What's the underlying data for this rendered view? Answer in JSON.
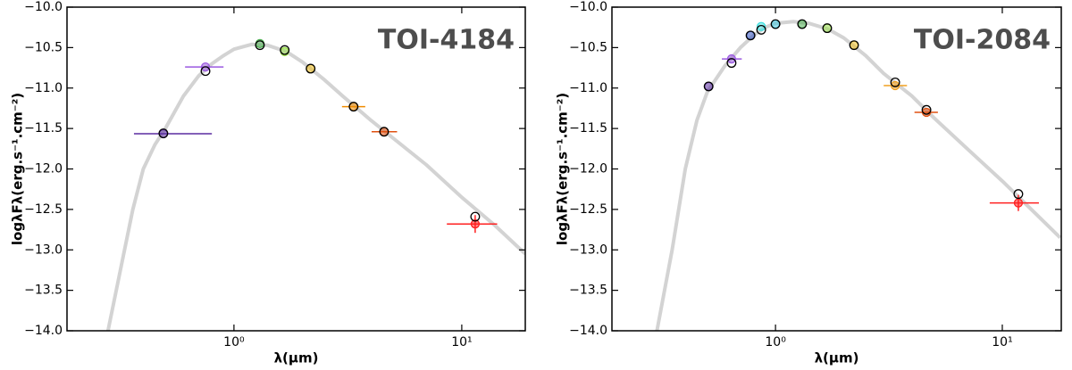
{
  "chart_data": [
    {
      "type": "scatter",
      "annotation": "TOI-4184",
      "xlabel": "λ(μm)",
      "ylabel": "logλFλ(erg.s⁻¹.cm⁻²)",
      "xscale": "log",
      "xlim": [
        0.185,
        19
      ],
      "ylim": [
        -14,
        -10
      ],
      "xticks": [
        {
          "value": 1,
          "label": "10⁰"
        },
        {
          "value": 10,
          "label": "10¹"
        }
      ],
      "yticks": [
        {
          "value": -14,
          "label": "−14.0"
        },
        {
          "value": -13.5,
          "label": "−13.5"
        },
        {
          "value": -13,
          "label": "−13.0"
        },
        {
          "value": -12.5,
          "label": "−12.5"
        },
        {
          "value": -12,
          "label": "−12.0"
        },
        {
          "value": -11.5,
          "label": "−11.5"
        },
        {
          "value": -11,
          "label": "−11.0"
        },
        {
          "value": -10.5,
          "label": "−10.5"
        },
        {
          "value": -10,
          "label": "−10.0"
        }
      ],
      "model_spectrum": {
        "color": "#d3d3d3",
        "x": [
          0.28,
          0.32,
          0.36,
          0.4,
          0.45,
          0.5,
          0.6,
          0.7,
          0.8,
          0.9,
          1.0,
          1.2,
          1.4,
          1.7,
          2.0,
          2.5,
          3,
          4,
          5,
          7,
          10,
          14,
          19
        ],
        "values": [
          -14,
          -13.2,
          -12.5,
          -12.0,
          -11.7,
          -11.5,
          -11.1,
          -10.85,
          -10.7,
          -10.6,
          -10.52,
          -10.46,
          -10.47,
          -10.55,
          -10.68,
          -10.9,
          -11.1,
          -11.4,
          -11.62,
          -11.95,
          -12.35,
          -12.7,
          -13.05
        ]
      },
      "series": [
        {
          "marker": "filled",
          "colors": [
            "#5a2ca0",
            "#9b59e0",
            "#4caf50",
            "#99e04a",
            "#f0c020",
            "#f08c00",
            "#e05010",
            "#ff2020"
          ],
          "x": [
            0.49,
            0.75,
            1.3,
            1.67,
            2.17,
            3.35,
            4.56,
            11.45
          ],
          "values": [
            -11.565,
            -10.74,
            -10.45,
            -10.55,
            -10.76,
            -11.23,
            -11.54,
            -12.68
          ],
          "x_lo": [
            0.364,
            0.61,
            null,
            null,
            null,
            2.98,
            4.02,
            8.6
          ],
          "x_hi": [
            0.8,
            0.9,
            null,
            null,
            null,
            3.77,
            5.2,
            14.3
          ],
          "yerr": [
            null,
            null,
            null,
            null,
            null,
            null,
            null,
            0.11
          ]
        },
        {
          "marker": "open",
          "color": "#000000",
          "x": [
            0.49,
            0.75,
            1.3,
            1.67,
            2.17,
            3.35,
            4.56,
            11.45
          ],
          "values": [
            -11.56,
            -10.79,
            -10.47,
            -10.53,
            -10.76,
            -11.23,
            -11.54,
            -12.59
          ]
        }
      ]
    },
    {
      "type": "scatter",
      "annotation": "TOI-2084",
      "xlabel": "λ(μm)",
      "ylabel": "logλFλ(erg.s⁻¹.cm⁻²)",
      "xscale": "log",
      "xlim": [
        0.19,
        18.2
      ],
      "ylim": [
        -14,
        -10
      ],
      "xticks": [
        {
          "value": 1,
          "label": "10⁰"
        },
        {
          "value": 10,
          "label": "10¹"
        }
      ],
      "yticks": [
        {
          "value": -14,
          "label": "−14.0"
        },
        {
          "value": -13.5,
          "label": "−13.5"
        },
        {
          "value": -13,
          "label": "−13.0"
        },
        {
          "value": -12.5,
          "label": "−12.5"
        },
        {
          "value": -12,
          "label": "−12.0"
        },
        {
          "value": -11.5,
          "label": "−11.5"
        },
        {
          "value": -11,
          "label": "−11.0"
        },
        {
          "value": -10.5,
          "label": "−10.5"
        },
        {
          "value": -10,
          "label": "−10.0"
        }
      ],
      "model_spectrum": {
        "color": "#d3d3d3",
        "x": [
          0.3,
          0.35,
          0.4,
          0.45,
          0.5,
          0.6,
          0.7,
          0.8,
          0.9,
          1.0,
          1.2,
          1.4,
          1.7,
          2.0,
          2.5,
          3,
          4,
          5,
          7,
          10,
          14,
          18
        ],
        "values": [
          -14,
          -13.0,
          -12.0,
          -11.4,
          -11.05,
          -10.72,
          -10.5,
          -10.35,
          -10.25,
          -10.2,
          -10.18,
          -10.2,
          -10.27,
          -10.38,
          -10.6,
          -10.82,
          -11.1,
          -11.37,
          -11.75,
          -12.15,
          -12.55,
          -12.85
        ]
      },
      "series": [
        {
          "marker": "filled",
          "colors": [
            "#5a2ca0",
            "#9b59e0",
            "#3050c0",
            "#40e0e0",
            "#40c8e0",
            "#4caf50",
            "#99e04a",
            "#f0c020",
            "#f0a020",
            "#e05010",
            "#ff2020"
          ],
          "x": [
            0.507,
            0.64,
            0.776,
            0.865,
            1.0,
            1.31,
            1.69,
            2.22,
            3.37,
            4.63,
            11.77
          ],
          "values": [
            -10.98,
            -10.64,
            -10.35,
            -10.24,
            -10.21,
            -10.21,
            -10.26,
            -10.47,
            -10.97,
            -11.3,
            -12.42
          ],
          "x_lo": [
            null,
            0.58,
            null,
            null,
            null,
            null,
            null,
            null,
            3.0,
            4.1,
            8.8
          ],
          "x_hi": [
            null,
            0.71,
            null,
            null,
            null,
            null,
            null,
            null,
            3.8,
            5.2,
            14.5
          ],
          "yerr": [
            null,
            null,
            null,
            null,
            null,
            null,
            null,
            null,
            null,
            null,
            0.1
          ]
        },
        {
          "marker": "open",
          "color": "#000000",
          "x": [
            0.507,
            0.64,
            0.776,
            0.865,
            1.0,
            1.31,
            1.69,
            2.22,
            3.37,
            4.63,
            11.77
          ],
          "values": [
            -10.98,
            -10.69,
            -10.35,
            -10.28,
            -10.21,
            -10.21,
            -10.26,
            -10.47,
            -10.93,
            -11.27,
            -12.31
          ]
        }
      ]
    }
  ]
}
